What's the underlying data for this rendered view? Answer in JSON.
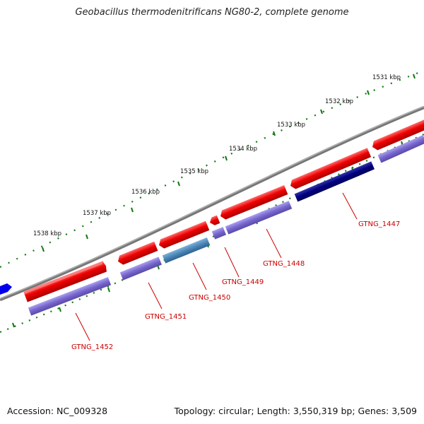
{
  "title": "Geobacillus thermodenitrificans NG80-2, complete genome",
  "footer": {
    "accession": "Accession: NC_009328",
    "summary": "Topology: circular; Length: 3,550,319 bp; Genes: 3,509"
  },
  "colors": {
    "forward_strand": "#ee0000",
    "reverse_strand": "#7766cc",
    "highlight_reverse": "#4a86b8",
    "selected_reverse": "#000080",
    "backbone": "#808080",
    "ruler_ticks": "#117711",
    "label_text": "#cc0000",
    "edge_feature": "#0000ee"
  },
  "ruler": {
    "kbp_labels": [
      "1531 kbp",
      "1532 kbp",
      "1533 kbp",
      "1534 kbp",
      "1535 kbp",
      "1536 kbp",
      "1537 kbp",
      "1538 kbp"
    ]
  },
  "genes": [
    {
      "label": "GTNG_1447"
    },
    {
      "label": "GTNG_1448"
    },
    {
      "label": "GTNG_1449"
    },
    {
      "label": "GTNG_1450"
    },
    {
      "label": "GTNG_1451"
    },
    {
      "label": "GTNG_1452"
    }
  ]
}
